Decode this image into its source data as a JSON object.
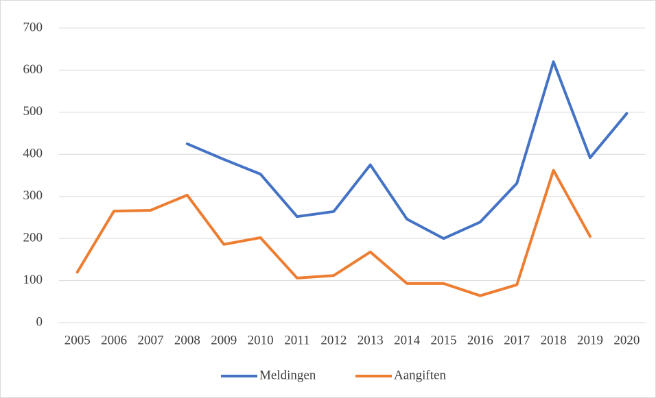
{
  "chart_data": {
    "type": "line",
    "categories": [
      "2005",
      "2006",
      "2007",
      "2008",
      "2009",
      "2010",
      "2011",
      "2012",
      "2013",
      "2014",
      "2015",
      "2016",
      "2017",
      "2018",
      "2019",
      "2020"
    ],
    "series": [
      {
        "name": "Meldingen",
        "color": "#4472c4",
        "values": [
          null,
          null,
          null,
          425,
          388,
          353,
          252,
          264,
          375,
          246,
          200,
          239,
          331,
          620,
          392,
          497
        ]
      },
      {
        "name": "Aangiften",
        "color": "#ed7d31",
        "values": [
          120,
          265,
          267,
          303,
          186,
          202,
          106,
          112,
          168,
          93,
          93,
          64,
          90,
          362,
          205,
          null
        ]
      }
    ],
    "ylim": [
      0,
      700
    ],
    "yticks": [
      0,
      100,
      200,
      300,
      400,
      500,
      600,
      700
    ],
    "grid": true,
    "legend": "bottom"
  }
}
